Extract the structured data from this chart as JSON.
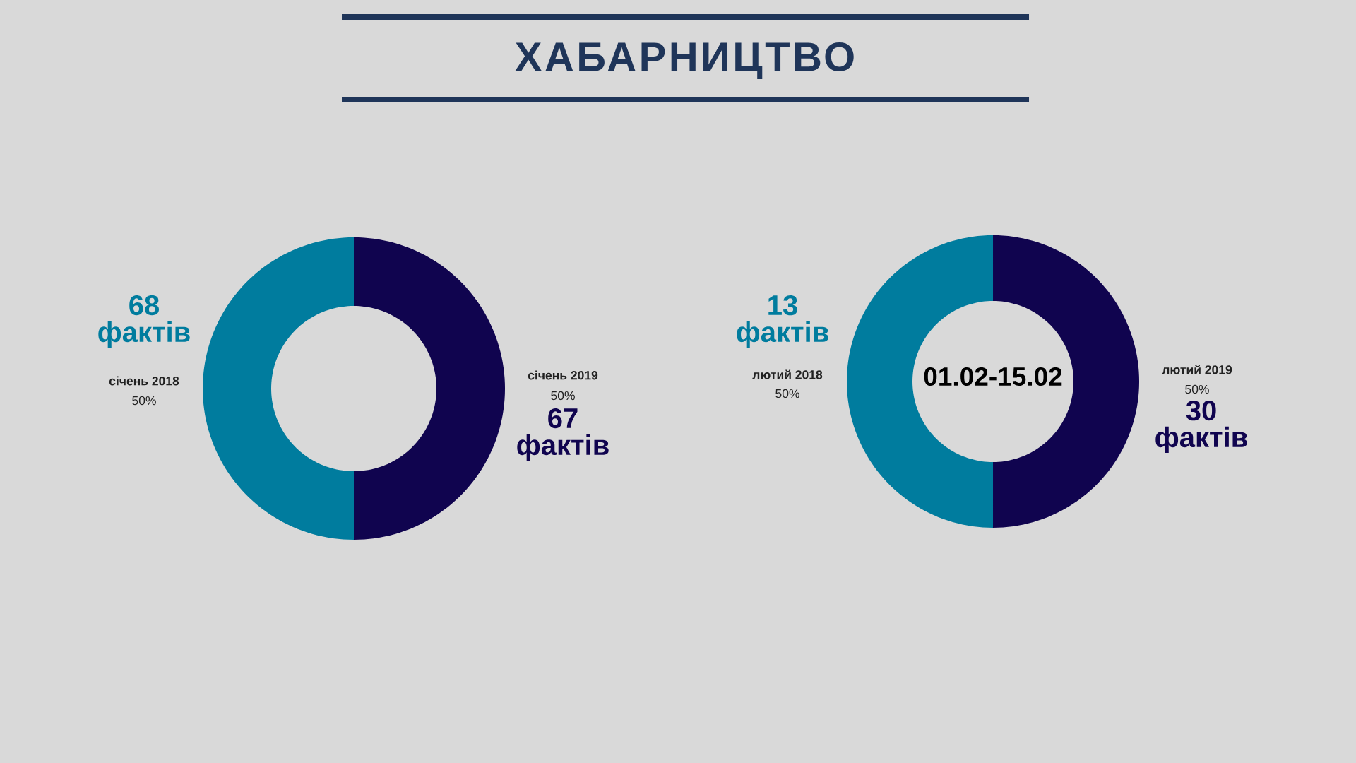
{
  "chart_data": [
    {
      "type": "donut",
      "title": "ХАБАРНИЦТВО",
      "categories": [
        "січень 2018",
        "січень 2019"
      ],
      "values": [
        50,
        50
      ],
      "colors": [
        "#007c9e",
        "#10044f"
      ],
      "value_labels": [
        "50%",
        "50%"
      ],
      "annotations": [
        "68 фактів",
        "67 фактів"
      ]
    },
    {
      "type": "donut",
      "title": "01.02-15.02",
      "categories": [
        "лютий 2018",
        "лютий 2019"
      ],
      "values": [
        50,
        50
      ],
      "colors": [
        "#007c9e",
        "#10044f"
      ],
      "value_labels": [
        "50%",
        "50%"
      ],
      "annotations": [
        "13 фактів",
        "30 фактів"
      ]
    }
  ]
}
